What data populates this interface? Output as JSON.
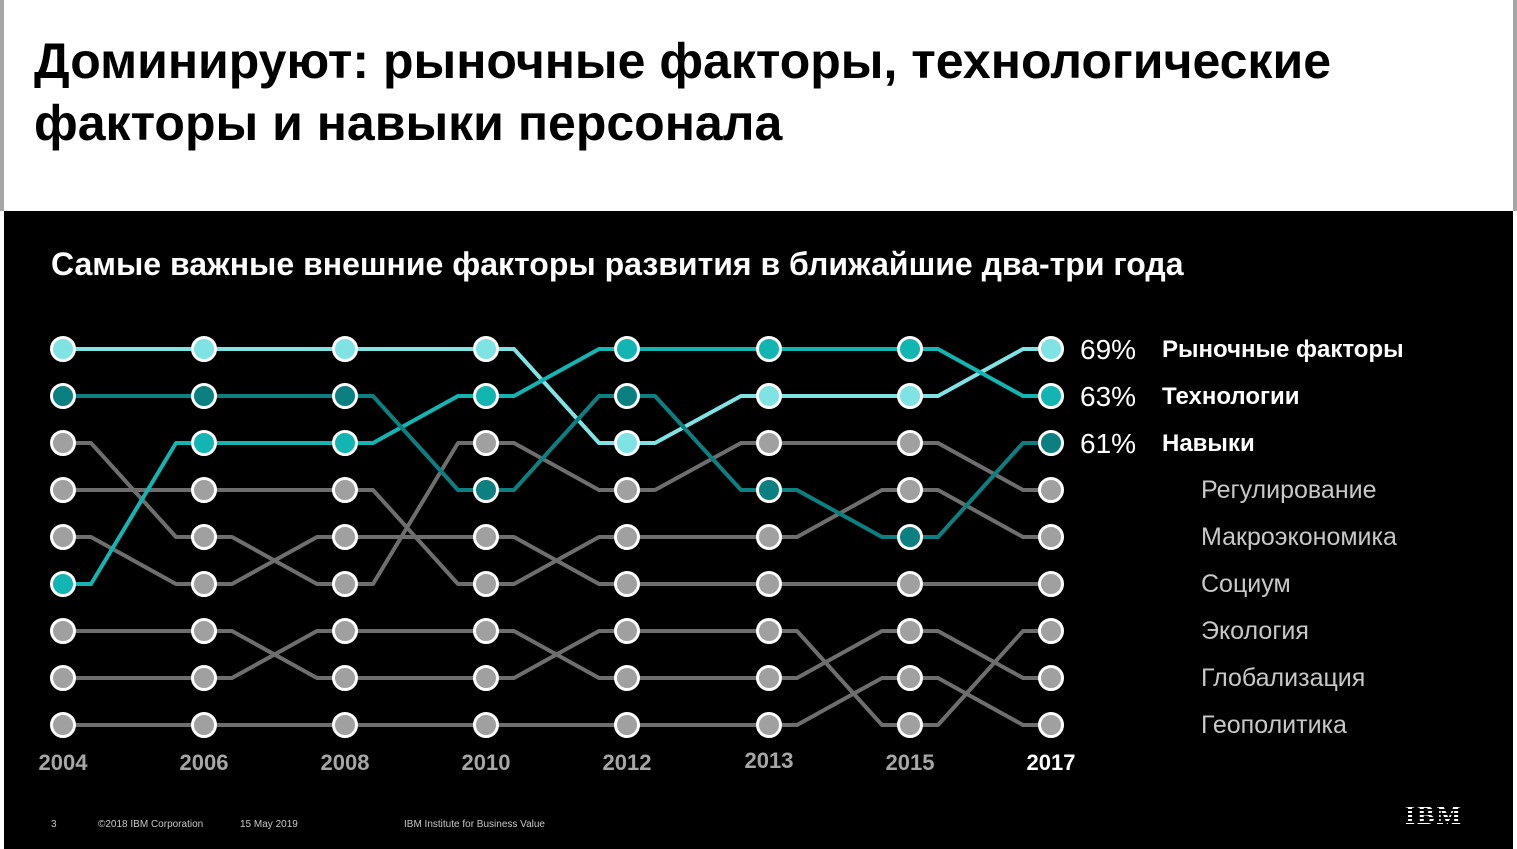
{
  "headline": "Доминируют: рыночные факторы, технологические факторы и навыки персонала",
  "chart_title": "Самые важные внешние факторы развития в ближайшие два-три года",
  "chart_data": {
    "type": "bump",
    "title": "Самые важные внешние факторы развития в ближайшие два-три года",
    "years": [
      "2004",
      "2006",
      "2008",
      "2010",
      "2012",
      "2013",
      "2015",
      "2017"
    ],
    "ranks_note": "rank 1 = top",
    "series": [
      {
        "name": "Рыночные факторы",
        "pct": "69%",
        "color": "#7fe3e3",
        "highlight": true,
        "ranks": [
          1,
          1,
          1,
          1,
          3,
          2,
          2,
          1
        ]
      },
      {
        "name": "Технологии",
        "pct": "63%",
        "color": "#13b5b3",
        "highlight": true,
        "ranks": [
          6,
          3,
          3,
          2,
          1,
          1,
          1,
          2
        ]
      },
      {
        "name": "Навыки",
        "pct": "61%",
        "color": "#0c7f80",
        "highlight": true,
        "ranks": [
          2,
          2,
          2,
          4,
          2,
          4,
          5,
          3
        ]
      },
      {
        "name": "Регулирование",
        "pct": "",
        "color": "#a0a0a0",
        "highlight": false,
        "ranks": [
          3,
          5,
          6,
          3,
          4,
          3,
          3,
          4
        ]
      },
      {
        "name": "Макроэкономика",
        "pct": "",
        "color": "#a0a0a0",
        "highlight": false,
        "ranks": [
          4,
          4,
          4,
          6,
          5,
          5,
          4,
          5
        ]
      },
      {
        "name": "Социум",
        "pct": "",
        "color": "#a0a0a0",
        "highlight": false,
        "ranks": [
          5,
          6,
          5,
          5,
          6,
          6,
          6,
          6
        ]
      },
      {
        "name": "Экология",
        "pct": "",
        "color": "#a0a0a0",
        "highlight": false,
        "ranks": [
          7,
          7,
          8,
          8,
          7,
          7,
          9,
          7
        ]
      },
      {
        "name": "Глобализация",
        "pct": "",
        "color": "#a0a0a0",
        "highlight": false,
        "ranks": [
          8,
          8,
          7,
          7,
          8,
          8,
          7,
          8
        ]
      },
      {
        "name": "Геополитика",
        "pct": "",
        "color": "#a0a0a0",
        "highlight": false,
        "ranks": [
          9,
          9,
          9,
          9,
          9,
          9,
          8,
          9
        ]
      }
    ],
    "grid": false,
    "legend": "right"
  },
  "footer": {
    "page": "3",
    "copyright": "©2018 IBM Corporation",
    "date": "15 May 2019",
    "source": "IBM Institute for Business Value"
  },
  "logo": "IBM",
  "colors": {
    "background": "#000000",
    "gray_line": "#6e6e6e",
    "gray_node": "#a0a0a0",
    "node_outline": "#ffffff"
  }
}
